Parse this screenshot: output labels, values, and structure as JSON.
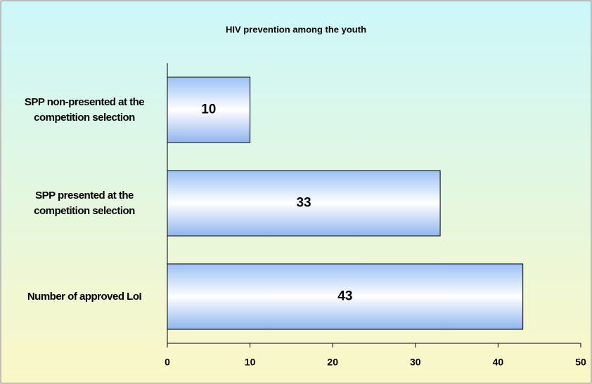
{
  "chart_data": {
    "type": "hbar",
    "title": "HIV prevention among the youth",
    "categories": [
      "SPP non-presented at the competition selection",
      "SPP presented at the competition selection",
      "Number of approved LoI"
    ],
    "values": [
      10,
      33,
      43
    ],
    "xlim": [
      0,
      50
    ],
    "xticks": [
      0,
      10,
      20,
      30,
      40,
      50
    ]
  }
}
